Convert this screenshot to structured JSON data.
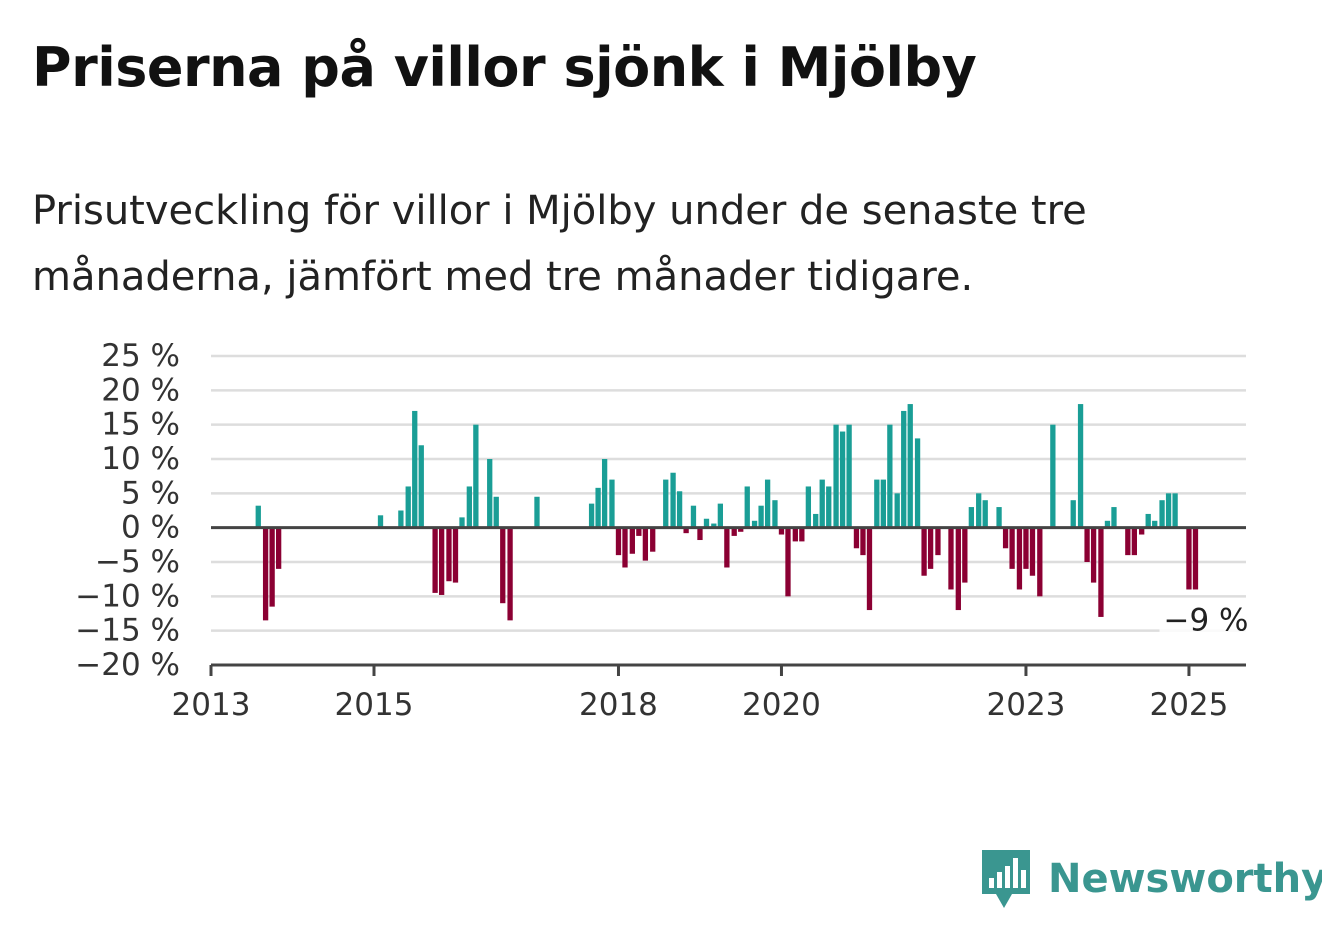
{
  "colors": {
    "positive": "#1a9e96",
    "negative": "#8b0033",
    "grid": "#dddddd",
    "axis": "#444444",
    "brand": "#3a9690"
  },
  "title": "Priserna på villor sjönk i Mjölby",
  "subtitle": "Prisutveckling för villor i Mjölby under de senaste tre månaderna, jämfört med tre månader tidigare.",
  "logo": {
    "text": "Newsworthy",
    "icon": "newsworthy-logo-icon"
  },
  "chart_data": {
    "type": "bar",
    "title": "",
    "xlabel": "",
    "ylabel": "",
    "xlim": [
      2013,
      2025.7
    ],
    "ylim": [
      -20,
      25
    ],
    "y_ticks": [
      25,
      20,
      15,
      10,
      5,
      0,
      -5,
      -10,
      -15,
      -20
    ],
    "y_tick_labels": [
      "25 %",
      "20 %",
      "15 %",
      "10 %",
      "5 %",
      "0 %",
      "−5 %",
      "−10 %",
      "−15 %",
      "−20 %"
    ],
    "x_ticks": [
      2013,
      2015,
      2018,
      2020,
      2023,
      2025
    ],
    "x_tick_labels": [
      "2013",
      "2015",
      "2018",
      "2020",
      "2023",
      "2025"
    ],
    "grid": true,
    "unit": "%",
    "annotation": {
      "label": "−9 %",
      "x": 2025.08,
      "y": -9
    },
    "points": [
      {
        "x": 2013.58,
        "y": 3.2
      },
      {
        "x": 2013.67,
        "y": -13.5
      },
      {
        "x": 2013.75,
        "y": -11.5
      },
      {
        "x": 2013.83,
        "y": -6.0
      },
      {
        "x": 2015.08,
        "y": 1.8
      },
      {
        "x": 2015.33,
        "y": 2.5
      },
      {
        "x": 2015.42,
        "y": 6.0
      },
      {
        "x": 2015.5,
        "y": 17.0
      },
      {
        "x": 2015.58,
        "y": 12.0
      },
      {
        "x": 2015.75,
        "y": -9.5
      },
      {
        "x": 2015.83,
        "y": -9.8
      },
      {
        "x": 2015.92,
        "y": -7.8
      },
      {
        "x": 2016.0,
        "y": -8.0
      },
      {
        "x": 2016.08,
        "y": 1.5
      },
      {
        "x": 2016.17,
        "y": 6.0
      },
      {
        "x": 2016.25,
        "y": 15.0
      },
      {
        "x": 2016.42,
        "y": 10.0
      },
      {
        "x": 2016.5,
        "y": 4.5
      },
      {
        "x": 2016.58,
        "y": -11.0
      },
      {
        "x": 2016.67,
        "y": -13.5
      },
      {
        "x": 2017.0,
        "y": 4.5
      },
      {
        "x": 2017.67,
        "y": 3.5
      },
      {
        "x": 2017.75,
        "y": 5.8
      },
      {
        "x": 2017.83,
        "y": 10.0
      },
      {
        "x": 2017.92,
        "y": 7.0
      },
      {
        "x": 2018.0,
        "y": -4.0
      },
      {
        "x": 2018.08,
        "y": -5.8
      },
      {
        "x": 2018.17,
        "y": -3.8
      },
      {
        "x": 2018.25,
        "y": -1.2
      },
      {
        "x": 2018.33,
        "y": -4.8
      },
      {
        "x": 2018.42,
        "y": -3.5
      },
      {
        "x": 2018.5,
        "y": 0.0
      },
      {
        "x": 2018.58,
        "y": 7.0
      },
      {
        "x": 2018.67,
        "y": 8.0
      },
      {
        "x": 2018.75,
        "y": 5.3
      },
      {
        "x": 2018.83,
        "y": -0.8
      },
      {
        "x": 2018.92,
        "y": 3.2
      },
      {
        "x": 2019.0,
        "y": -1.8
      },
      {
        "x": 2019.08,
        "y": 1.3
      },
      {
        "x": 2019.17,
        "y": 0.6
      },
      {
        "x": 2019.25,
        "y": 3.5
      },
      {
        "x": 2019.33,
        "y": -5.8
      },
      {
        "x": 2019.42,
        "y": -1.2
      },
      {
        "x": 2019.5,
        "y": -0.6
      },
      {
        "x": 2019.58,
        "y": 6.0
      },
      {
        "x": 2019.67,
        "y": 1.0
      },
      {
        "x": 2019.75,
        "y": 3.2
      },
      {
        "x": 2019.83,
        "y": 7.0
      },
      {
        "x": 2019.92,
        "y": 4.0
      },
      {
        "x": 2020.0,
        "y": -1.0
      },
      {
        "x": 2020.08,
        "y": -10.0
      },
      {
        "x": 2020.17,
        "y": -2.0
      },
      {
        "x": 2020.25,
        "y": -2.0
      },
      {
        "x": 2020.33,
        "y": 6.0
      },
      {
        "x": 2020.42,
        "y": 2.0
      },
      {
        "x": 2020.5,
        "y": 7.0
      },
      {
        "x": 2020.58,
        "y": 6.0
      },
      {
        "x": 2020.67,
        "y": 15.0
      },
      {
        "x": 2020.75,
        "y": 14.0
      },
      {
        "x": 2020.83,
        "y": 15.0
      },
      {
        "x": 2020.92,
        "y": -3.0
      },
      {
        "x": 2021.0,
        "y": -4.0
      },
      {
        "x": 2021.08,
        "y": -12.0
      },
      {
        "x": 2021.17,
        "y": 7.0
      },
      {
        "x": 2021.25,
        "y": 7.0
      },
      {
        "x": 2021.33,
        "y": 15.0
      },
      {
        "x": 2021.42,
        "y": 5.0
      },
      {
        "x": 2021.5,
        "y": 17.0
      },
      {
        "x": 2021.58,
        "y": 18.0
      },
      {
        "x": 2021.67,
        "y": 13.0
      },
      {
        "x": 2021.75,
        "y": -7.0
      },
      {
        "x": 2021.83,
        "y": -6.0
      },
      {
        "x": 2021.92,
        "y": -4.0
      },
      {
        "x": 2022.08,
        "y": -9.0
      },
      {
        "x": 2022.17,
        "y": -12.0
      },
      {
        "x": 2022.25,
        "y": -8.0
      },
      {
        "x": 2022.33,
        "y": 3.0
      },
      {
        "x": 2022.42,
        "y": 5.0
      },
      {
        "x": 2022.5,
        "y": 4.0
      },
      {
        "x": 2022.67,
        "y": 3.0
      },
      {
        "x": 2022.75,
        "y": -3.0
      },
      {
        "x": 2022.83,
        "y": -6.0
      },
      {
        "x": 2022.92,
        "y": -9.0
      },
      {
        "x": 2023.0,
        "y": -6.0
      },
      {
        "x": 2023.08,
        "y": -7.0
      },
      {
        "x": 2023.17,
        "y": -10.0
      },
      {
        "x": 2023.33,
        "y": 15.0
      },
      {
        "x": 2023.58,
        "y": 4.0
      },
      {
        "x": 2023.67,
        "y": 18.0
      },
      {
        "x": 2023.75,
        "y": -5.0
      },
      {
        "x": 2023.83,
        "y": -8.0
      },
      {
        "x": 2023.92,
        "y": -13.0
      },
      {
        "x": 2024.0,
        "y": 1.0
      },
      {
        "x": 2024.08,
        "y": 3.0
      },
      {
        "x": 2024.25,
        "y": -4.0
      },
      {
        "x": 2024.33,
        "y": -4.0
      },
      {
        "x": 2024.42,
        "y": -1.0
      },
      {
        "x": 2024.5,
        "y": 2.0
      },
      {
        "x": 2024.58,
        "y": 1.0
      },
      {
        "x": 2024.67,
        "y": 4.0
      },
      {
        "x": 2024.75,
        "y": 5.0
      },
      {
        "x": 2024.83,
        "y": 5.0
      },
      {
        "x": 2025.0,
        "y": -9.0
      },
      {
        "x": 2025.08,
        "y": -9.0
      }
    ]
  }
}
